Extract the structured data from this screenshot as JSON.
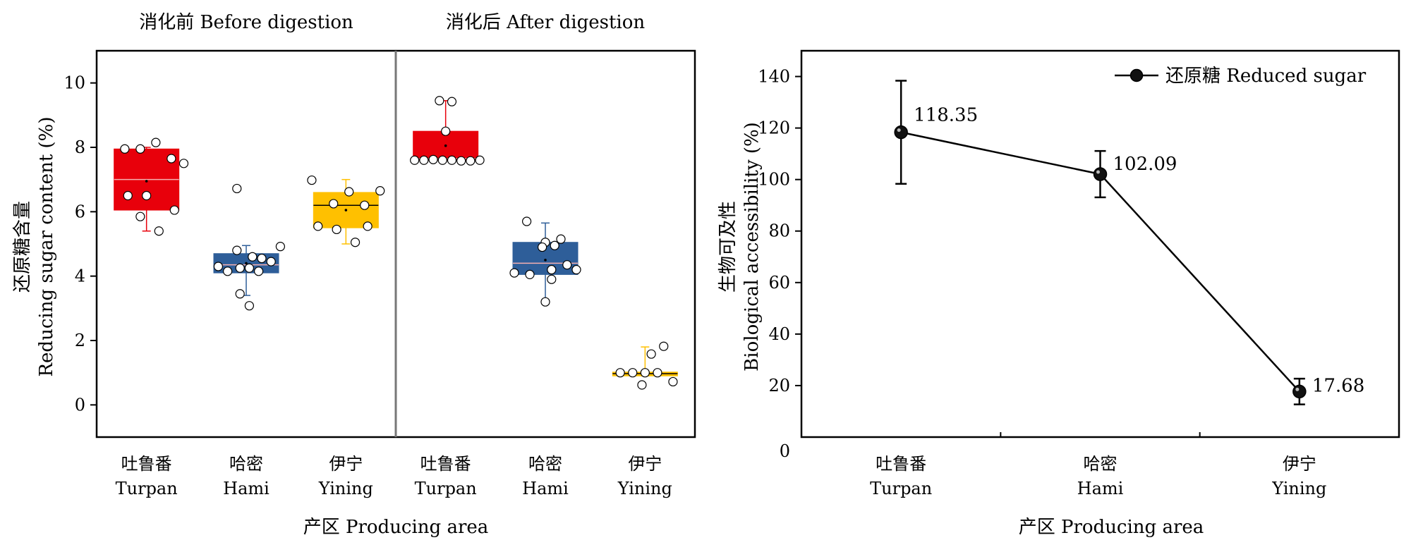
{
  "chart_data": [
    {
      "type": "box",
      "panels": [
        "消化前 Before digestion",
        "消化后 After digestion"
      ],
      "ylabel": [
        "还原糖含量",
        "Reducing sugar content (%)"
      ],
      "xlabel": "产区 Producing area",
      "ylim": [
        -1,
        11
      ],
      "yticks": [
        0,
        2,
        4,
        6,
        8,
        10
      ],
      "categories": [
        {
          "zh": "吐鲁番",
          "en": "Turpan"
        },
        {
          "zh": "哈密",
          "en": "Hami"
        },
        {
          "zh": "伊宁",
          "en": "Yining"
        },
        {
          "zh": "吐鲁番",
          "en": "Turpan"
        },
        {
          "zh": "哈密",
          "en": "Hami"
        },
        {
          "zh": "伊宁",
          "en": "Yining"
        }
      ],
      "boxes": [
        {
          "q1": 6.05,
          "median": 7.0,
          "q3": 7.95,
          "mean": 6.95,
          "whisker_low": 5.4,
          "whisker_high": 8.0,
          "color": "#e8000b",
          "points": [
            [
              -0.35,
              7.95
            ],
            [
              -0.1,
              7.95
            ],
            [
              0.15,
              8.15
            ],
            [
              0.4,
              7.65
            ],
            [
              0.6,
              7.5
            ],
            [
              -0.3,
              6.5
            ],
            [
              0.0,
              6.5
            ],
            [
              0.45,
              6.05
            ],
            [
              -0.1,
              5.85
            ],
            [
              0.2,
              5.4
            ]
          ]
        },
        {
          "q1": 4.1,
          "median": 4.35,
          "q3": 4.7,
          "mean": 4.4,
          "whisker_low": 3.4,
          "whisker_high": 4.95,
          "color": "#2e5e99",
          "points": [
            [
              -0.15,
              6.72
            ],
            [
              -0.45,
              4.3
            ],
            [
              -0.3,
              4.15
            ],
            [
              -0.1,
              4.25
            ],
            [
              0.05,
              4.25
            ],
            [
              0.2,
              4.15
            ],
            [
              0.4,
              4.45
            ],
            [
              -0.15,
              4.8
            ],
            [
              0.1,
              4.6
            ],
            [
              0.25,
              4.55
            ],
            [
              0.55,
              4.92
            ],
            [
              -0.1,
              3.45
            ],
            [
              0.05,
              3.08
            ]
          ]
        },
        {
          "q1": 5.5,
          "median": 6.2,
          "q3": 6.6,
          "mean": 6.05,
          "whisker_low": 5.0,
          "whisker_high": 7.0,
          "color": "#ffc000",
          "points": [
            [
              -0.55,
              6.98
            ],
            [
              -0.2,
              6.25
            ],
            [
              0.05,
              6.62
            ],
            [
              0.3,
              6.2
            ],
            [
              0.55,
              6.65
            ],
            [
              -0.45,
              5.55
            ],
            [
              -0.15,
              5.45
            ],
            [
              0.35,
              5.55
            ],
            [
              0.15,
              5.05
            ]
          ]
        },
        {
          "q1": 7.6,
          "median": 7.65,
          "q3": 8.5,
          "mean": 8.05,
          "whisker_low": 7.6,
          "whisker_high": 9.45,
          "color": "#e8000b",
          "points": [
            [
              -0.1,
              9.45
            ],
            [
              0.1,
              9.42
            ],
            [
              -0.5,
              7.6
            ],
            [
              -0.35,
              7.6
            ],
            [
              -0.2,
              7.62
            ],
            [
              -0.05,
              7.6
            ],
            [
              0.1,
              7.6
            ],
            [
              0.25,
              7.58
            ],
            [
              0.4,
              7.58
            ],
            [
              0.55,
              7.6
            ],
            [
              0.0,
              8.5
            ]
          ]
        },
        {
          "q1": 4.05,
          "median": 4.4,
          "q3": 5.05,
          "mean": 4.5,
          "whisker_low": 3.15,
          "whisker_high": 5.65,
          "color": "#2e5e99",
          "points": [
            [
              -0.3,
              5.7
            ],
            [
              0.0,
              5.05
            ],
            [
              0.25,
              5.15
            ],
            [
              -0.05,
              4.9
            ],
            [
              0.15,
              4.95
            ],
            [
              -0.5,
              4.1
            ],
            [
              -0.25,
              4.05
            ],
            [
              0.1,
              4.2
            ],
            [
              0.35,
              4.35
            ],
            [
              0.5,
              4.2
            ],
            [
              0.1,
              3.9
            ],
            [
              0.0,
              3.2
            ]
          ]
        },
        {
          "q1": 0.9,
          "median": 0.97,
          "q3": 1.02,
          "mean": 1.0,
          "whisker_low": 0.9,
          "whisker_high": 1.8,
          "color": "#ffc000",
          "points": [
            [
              0.3,
              1.82
            ],
            [
              0.1,
              1.58
            ],
            [
              -0.4,
              1.0
            ],
            [
              -0.2,
              1.0
            ],
            [
              0.0,
              1.0
            ],
            [
              0.2,
              1.0
            ],
            [
              0.45,
              0.72
            ],
            [
              -0.05,
              0.62
            ]
          ]
        }
      ]
    },
    {
      "type": "line",
      "ylabel": [
        "生物可及性",
        "Biological accessibility (%)"
      ],
      "xlabel": "产区 Producing area",
      "ylim": [
        0,
        150
      ],
      "yticks": [
        0,
        20,
        40,
        60,
        80,
        100,
        120,
        140
      ],
      "categories": [
        {
          "zh": "吐鲁番",
          "en": "Turpan"
        },
        {
          "zh": "哈密",
          "en": "Hami"
        },
        {
          "zh": "伊宁",
          "en": "Yining"
        }
      ],
      "series": [
        {
          "name": "还原糖 Reduced sugar",
          "values": [
            118.35,
            102.09,
            17.68
          ],
          "errors": [
            20,
            9,
            5
          ]
        }
      ],
      "data_labels": [
        "118.35",
        "102.09",
        "17.68"
      ]
    }
  ]
}
